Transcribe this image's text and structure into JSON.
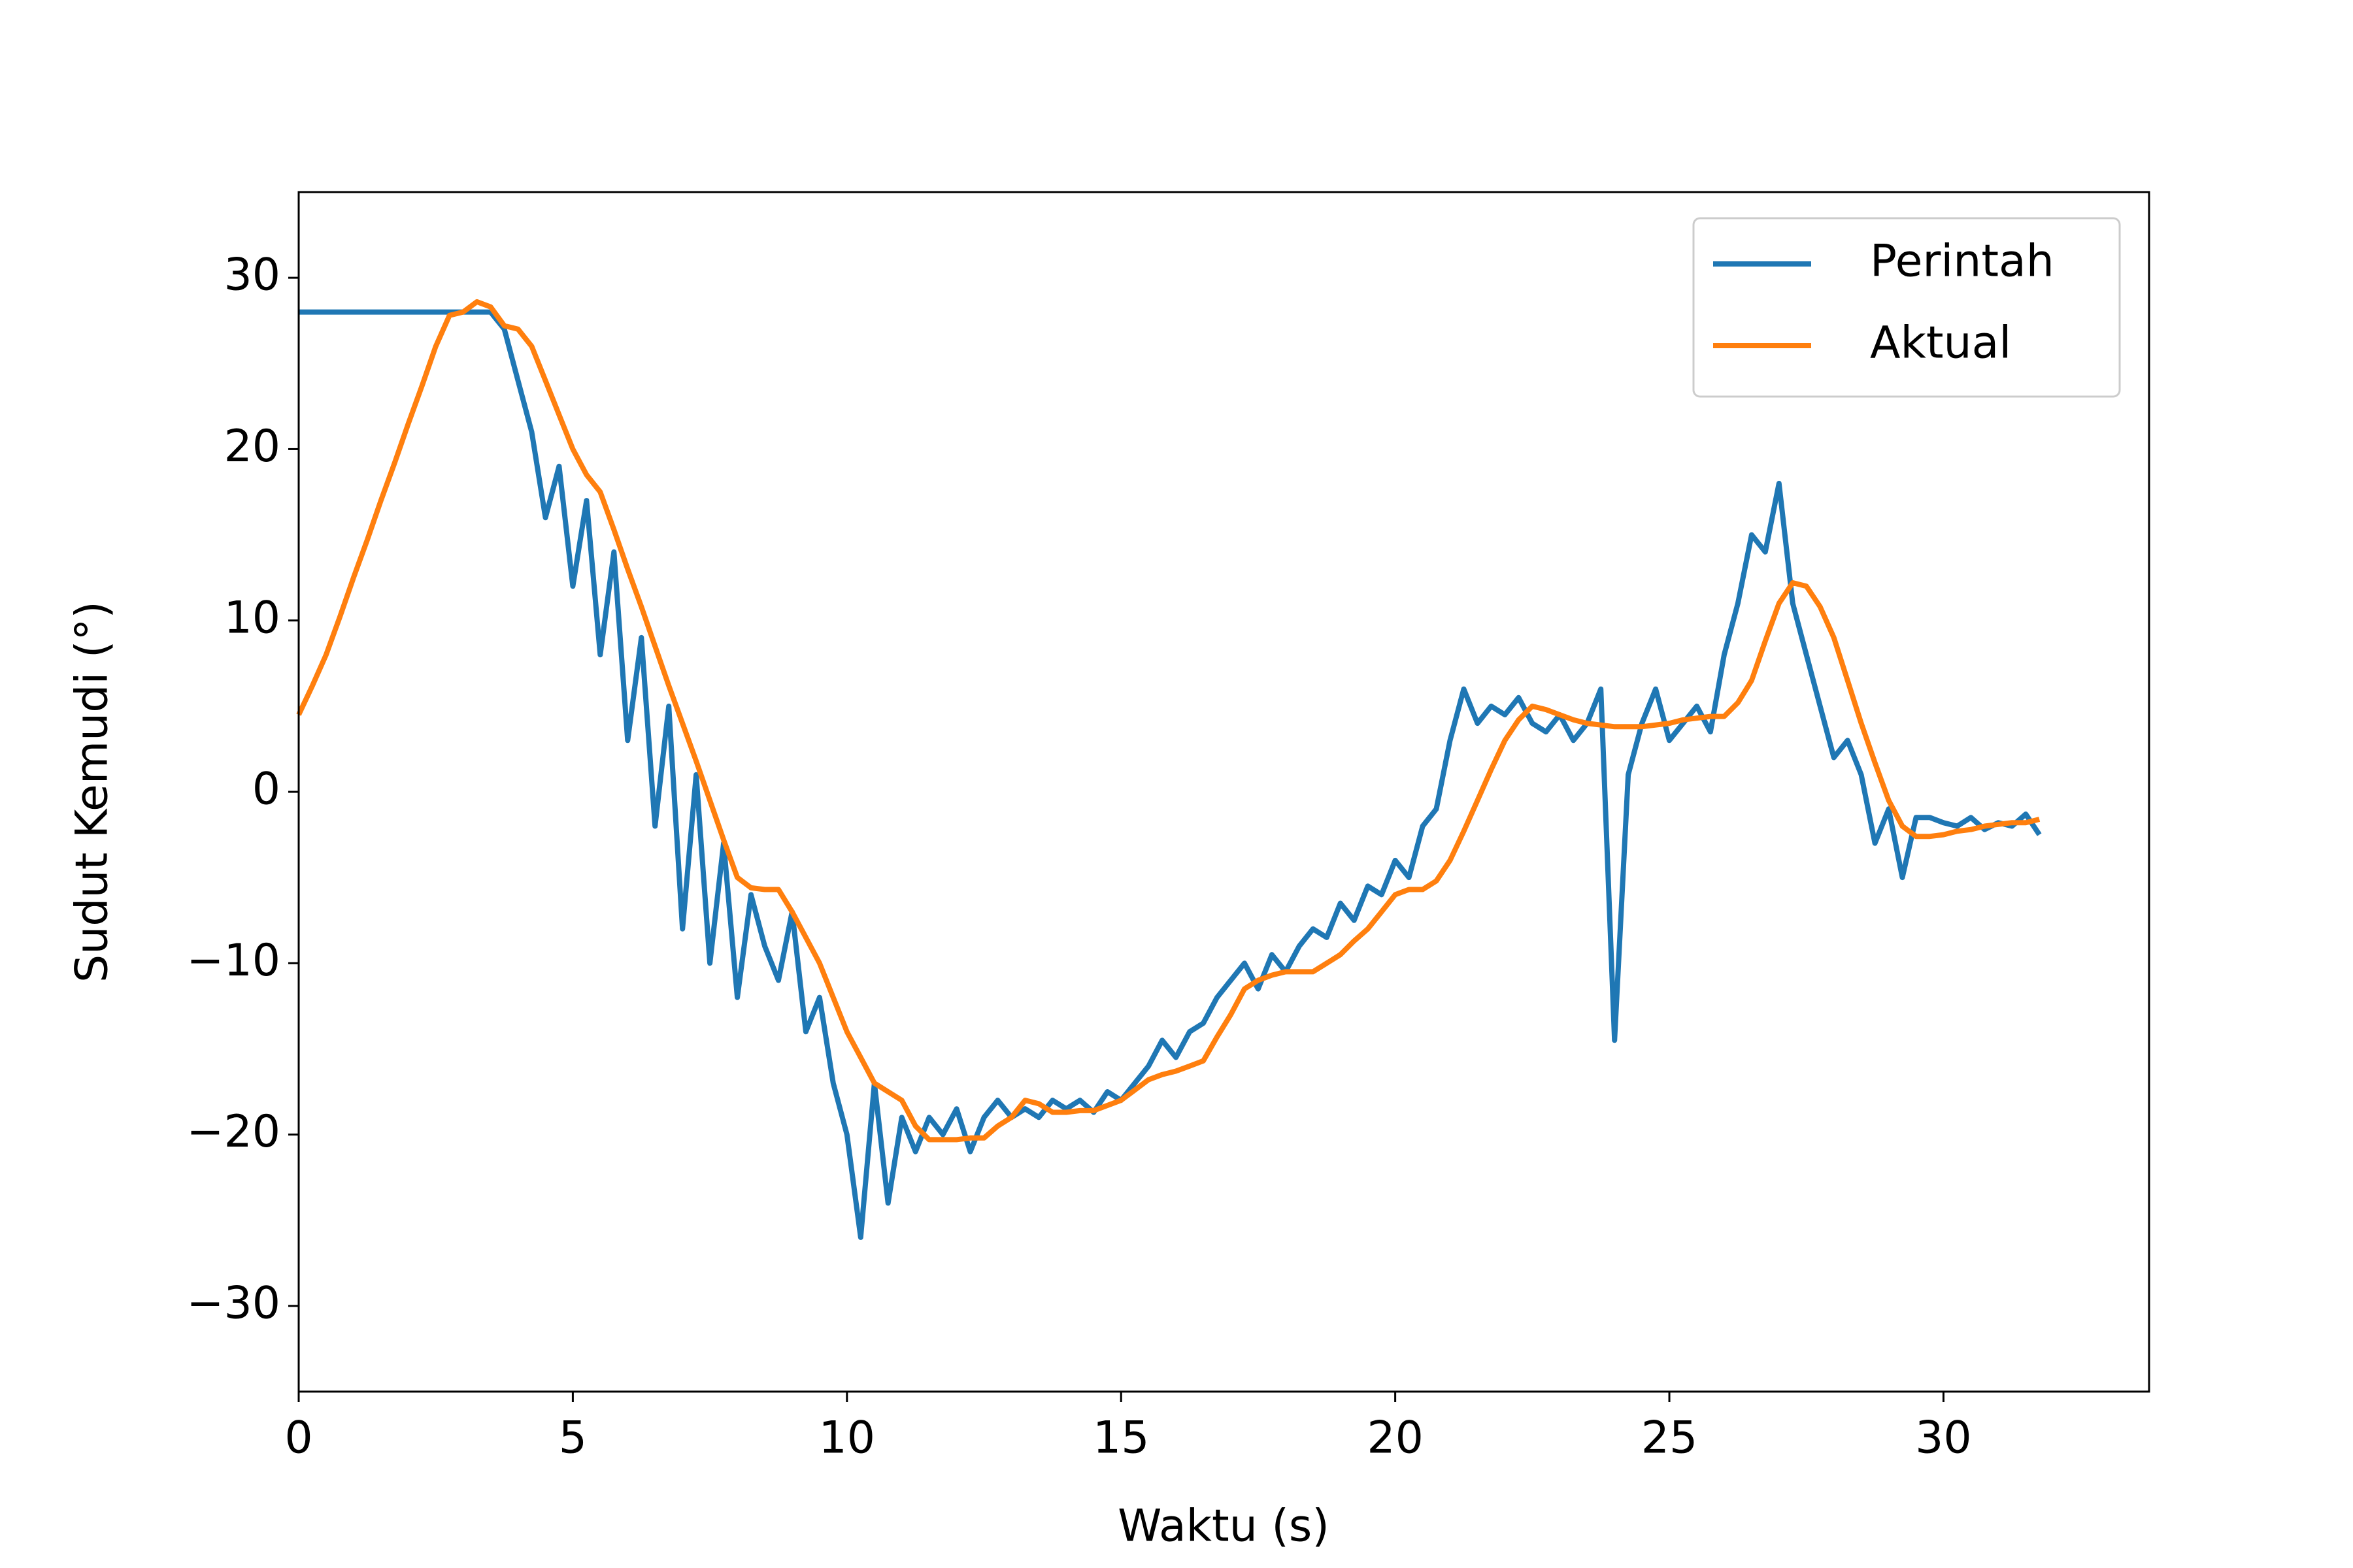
{
  "chart_data": {
    "type": "line",
    "xlabel": "Waktu (s)",
    "ylabel": "Sudut Kemudi (°)",
    "x": [
      0,
      0.25,
      0.5,
      0.75,
      1,
      1.25,
      1.5,
      1.75,
      2,
      2.25,
      2.5,
      2.75,
      3,
      3.25,
      3.5,
      3.75,
      4,
      4.25,
      4.5,
      4.75,
      5,
      5.25,
      5.5,
      5.75,
      6,
      6.25,
      6.5,
      6.75,
      7,
      7.25,
      7.5,
      7.75,
      8,
      8.25,
      8.5,
      8.75,
      9,
      9.25,
      9.5,
      9.75,
      10,
      10.25,
      10.5,
      10.75,
      11,
      11.25,
      11.5,
      11.75,
      12,
      12.25,
      12.5,
      12.75,
      13,
      13.25,
      13.5,
      13.75,
      14,
      14.25,
      14.5,
      14.75,
      15,
      15.25,
      15.5,
      15.75,
      16,
      16.25,
      16.5,
      16.75,
      17,
      17.25,
      17.5,
      17.75,
      18,
      18.25,
      18.5,
      18.75,
      19,
      19.25,
      19.5,
      19.75,
      20,
      20.25,
      20.5,
      20.75,
      21,
      21.25,
      21.5,
      21.75,
      22,
      22.25,
      22.5,
      22.75,
      23,
      23.25,
      23.5,
      23.75,
      24,
      24.25,
      24.5,
      24.75,
      25,
      25.25,
      25.5,
      25.75,
      26,
      26.25,
      26.5,
      26.75,
      27,
      27.25,
      27.5,
      27.75,
      28,
      28.25,
      28.5,
      28.75,
      29,
      29.25,
      29.5,
      29.75,
      30,
      30.25,
      30.5,
      30.75,
      31,
      31.25,
      31.5,
      31.75
    ],
    "series": [
      {
        "name": "Perintah",
        "color": "#1f77b4",
        "values": [
          28,
          28,
          28,
          28,
          28,
          28,
          28,
          28,
          28,
          28,
          28,
          28,
          28,
          28,
          28,
          27,
          24,
          21,
          16,
          19,
          12,
          17,
          8,
          14,
          3,
          9,
          -2,
          5,
          -8,
          1,
          -10,
          -3,
          -12,
          -6,
          -9,
          -11,
          -7,
          -14,
          -12,
          -17,
          -20,
          -26,
          -17,
          -24,
          -19,
          -21,
          -19,
          -20,
          -18.5,
          -21,
          -19,
          -18,
          -19,
          -18.5,
          -19,
          -18,
          -18.5,
          -18,
          -18.7,
          -17.5,
          -18,
          -17,
          -16,
          -14.5,
          -15.5,
          -14,
          -13.5,
          -12,
          -11,
          -10,
          -11.5,
          -9.5,
          -10.5,
          -9,
          -8,
          -8.5,
          -6.5,
          -7.5,
          -5.5,
          -6,
          -4,
          -5,
          -2,
          -1,
          3,
          6,
          4,
          5,
          4.5,
          5.5,
          4,
          3.5,
          4.5,
          3,
          4,
          6,
          -14.5,
          1,
          4,
          6,
          3,
          4,
          5,
          3.5,
          8,
          11,
          15,
          14,
          18,
          11,
          8,
          5,
          2,
          3,
          1,
          -3,
          -1,
          -5,
          -1.5,
          -1.5,
          -1.8,
          -2,
          -1.5,
          -2.2,
          -1.8,
          -2,
          -1.3,
          -2.5
        ]
      },
      {
        "name": "Aktual",
        "color": "#ff7f0e",
        "values": [
          4.5,
          6.2,
          8,
          10.2,
          12.5,
          14.7,
          17,
          19.2,
          21.5,
          23.7,
          26,
          27.8,
          28,
          28.6,
          28.3,
          27.2,
          27,
          26,
          24,
          22,
          20,
          18.5,
          17.5,
          15.3,
          13,
          10.8,
          8.5,
          6.2,
          4,
          1.8,
          -0.5,
          -2.8,
          -5,
          -5.6,
          -5.7,
          -5.7,
          -7,
          -8.5,
          -10,
          -12,
          -14,
          -15.5,
          -17,
          -17.5,
          -18,
          -19.5,
          -20.3,
          -20.3,
          -20.3,
          -20.2,
          -20.2,
          -19.5,
          -19,
          -18,
          -18.2,
          -18.7,
          -18.7,
          -18.6,
          -18.6,
          -18.3,
          -18,
          -17.4,
          -16.8,
          -16.5,
          -16.3,
          -16,
          -15.7,
          -14.3,
          -13,
          -11.5,
          -11,
          -10.7,
          -10.5,
          -10.5,
          -10.5,
          -10,
          -9.5,
          -8.7,
          -8,
          -7,
          -6,
          -5.7,
          -5.7,
          -5.2,
          -4,
          -2.3,
          -0.5,
          1.3,
          3,
          4.2,
          5,
          4.8,
          4.5,
          4.2,
          4,
          3.9,
          3.8,
          3.8,
          3.8,
          3.9,
          4,
          4.2,
          4.3,
          4.4,
          4.4,
          5.2,
          6.5,
          8.8,
          11,
          12.2,
          12,
          10.8,
          9,
          6.5,
          4,
          1.7,
          -0.5,
          -2,
          -2.6,
          -2.6,
          -2.5,
          -2.3,
          -2.2,
          -2,
          -1.9,
          -1.8,
          -1.8,
          -1.6
        ]
      }
    ],
    "xlim": [
      0,
      33.75
    ],
    "ylim": [
      -35,
      35
    ],
    "xticks": [
      0,
      5,
      10,
      15,
      20,
      25,
      30
    ],
    "yticks": [
      {
        "value": -30,
        "label": "−30"
      },
      {
        "value": -20,
        "label": "−20"
      },
      {
        "value": -10,
        "label": "−10"
      },
      0,
      10,
      20,
      30
    ],
    "legend": "upper right"
  }
}
